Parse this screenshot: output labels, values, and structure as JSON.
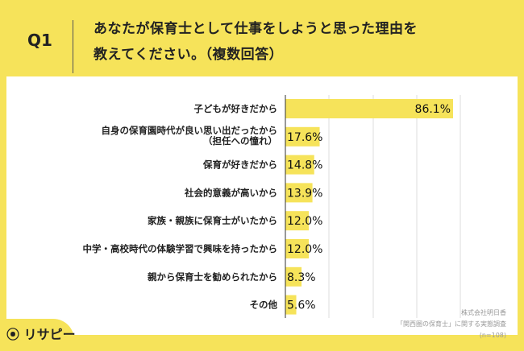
{
  "header": {
    "q": "Q1",
    "title_line1": "あなたが保育士として仕事をしようと思った理由を",
    "title_line2": "教えてください。（複数回答）"
  },
  "note": {
    "line1": "株式会社明日香",
    "line2": "「関西圏の保育士」に関する実態調査",
    "line3": "(n=108)"
  },
  "logo": "リサピー",
  "colors": {
    "bar": "#f6e35a",
    "background": "#f6e35a"
  },
  "chart_data": {
    "type": "bar",
    "orientation": "horizontal",
    "categories": [
      "子どもが好きだから",
      "自身の保育園時代が良い思い出だったから（担任への憧れ）",
      "保育が好きだから",
      "社会的意義が高いから",
      "家族・親族に保育士がいたから",
      "中学・高校時代の体験学習で興味を持ったから",
      "親から保育士を勧められたから",
      "その他"
    ],
    "category_lines": [
      [
        "子どもが好きだから"
      ],
      [
        "自身の保育園時代が良い思い出だったから",
        "（担任への憧れ）"
      ],
      [
        "保育が好きだから"
      ],
      [
        "社会的意義が高いから"
      ],
      [
        "家族・親族に保育士がいたから"
      ],
      [
        "中学・高校時代の体験学習で興味を持ったから"
      ],
      [
        "親から保育士を勧められたから"
      ],
      [
        "その他"
      ]
    ],
    "values": [
      86.1,
      17.6,
      14.8,
      13.9,
      12.0,
      12.0,
      8.3,
      5.6
    ],
    "labels": [
      "86.1%",
      "17.6%",
      "14.8%",
      "13.9%",
      "12.0%",
      "12.0%",
      "8.3%",
      "5.6%"
    ],
    "unit": "%",
    "grid": true
  }
}
